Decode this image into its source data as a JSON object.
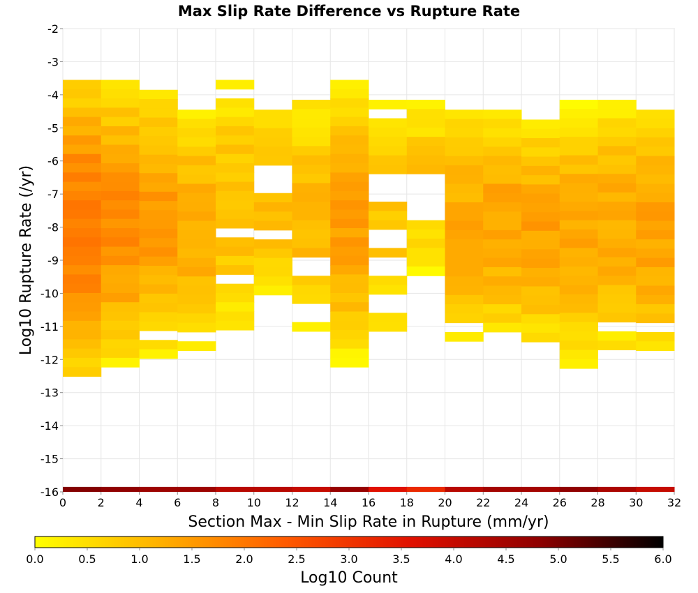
{
  "chart_data": {
    "type": "heatmap",
    "title": "Max Slip Rate Difference vs Rupture Rate",
    "xlabel": "Section Max - Min Slip Rate in Rupture (mm/yr)",
    "ylabel": "Log10 Rupture Rate (/yr)",
    "xlim": [
      0,
      32
    ],
    "ylim": [
      -16,
      -2
    ],
    "x_ticks": [
      "0",
      "2",
      "4",
      "6",
      "8",
      "10",
      "12",
      "14",
      "16",
      "18",
      "20",
      "22",
      "24",
      "26",
      "28",
      "30",
      "32"
    ],
    "y_ticks": [
      "-2",
      "-3",
      "-4",
      "-5",
      "-6",
      "-7",
      "-8",
      "-9",
      "-10",
      "-11",
      "-12",
      "-13",
      "-14",
      "-15",
      "-16"
    ],
    "x_bin_width": 2,
    "y_bin_height": 0.28,
    "grid": true,
    "colorbar": {
      "label": "Log10 Count",
      "range": [
        0,
        6
      ],
      "ticks": [
        "0.0",
        "0.5",
        "1.0",
        "1.5",
        "2.0",
        "2.5",
        "3.0",
        "3.5",
        "4.0",
        "4.5",
        "5.0",
        "5.5",
        "6.0"
      ],
      "colormap": [
        "#ffff00",
        "#ffb000",
        "#ff5a00",
        "#e01000",
        "#900000",
        "#000000"
      ]
    },
    "columns": [
      {
        "x": 1,
        "y_top": -3.55,
        "y_bottom": -12.45,
        "peak": 2.0,
        "edge": 0.5
      },
      {
        "x": 3,
        "y_top": -3.55,
        "y_bottom": -12.15,
        "peak": 1.7,
        "edge": 0.3
      },
      {
        "x": 5,
        "y_top": -3.85,
        "y_bottom": -11.85,
        "peak": 1.5,
        "edge": 0.3
      },
      {
        "x": 7,
        "y_top": -4.45,
        "y_bottom": -11.85,
        "peak": 1.3,
        "edge": 0.3
      },
      {
        "x": 9,
        "y_top": -3.55,
        "y_bottom": -11.25,
        "peak": 1.0,
        "edge": 0.2
      },
      {
        "x": 11,
        "y_top": -4.45,
        "y_bottom": -10.15,
        "peak": 1.0,
        "edge": 0.3
      },
      {
        "x": 13,
        "y_top": -4.15,
        "y_bottom": -11.25,
        "peak": 1.1,
        "edge": 0.2
      },
      {
        "x": 15,
        "y_top": -3.55,
        "y_bottom": -12.15,
        "peak": 1.4,
        "edge": 0.2
      },
      {
        "x": 17,
        "y_top": -4.15,
        "y_bottom": -11.25,
        "peak": 0.9,
        "edge": 0.2
      },
      {
        "x": 19,
        "y_top": -4.15,
        "y_bottom": -9.35,
        "peak": 0.9,
        "edge": 0.2
      },
      {
        "x": 21,
        "y_top": -4.45,
        "y_bottom": -11.55,
        "peak": 1.3,
        "edge": 0.3
      },
      {
        "x": 23,
        "y_top": -4.45,
        "y_bottom": -11.25,
        "peak": 1.4,
        "edge": 0.3
      },
      {
        "x": 25,
        "y_top": -4.75,
        "y_bottom": -11.55,
        "peak": 1.4,
        "edge": 0.3
      },
      {
        "x": 27,
        "y_top": -4.15,
        "y_bottom": -12.15,
        "peak": 1.3,
        "edge": 0.2
      },
      {
        "x": 29,
        "y_top": -4.15,
        "y_bottom": -11.85,
        "peak": 1.3,
        "edge": 0.2
      },
      {
        "x": 31,
        "y_top": -4.45,
        "y_bottom": -11.85,
        "peak": 1.4,
        "edge": 0.3
      }
    ],
    "gaps": [
      {
        "x": 5,
        "y_from": -11.0,
        "y_to": -11.3
      },
      {
        "x": 7,
        "y_from": -11.3,
        "y_to": -11.55
      },
      {
        "x": 9,
        "y_from": -3.85,
        "y_to": -4.15
      },
      {
        "x": 9,
        "y_from": -6.5,
        "y_to": -6.75
      },
      {
        "x": 9,
        "y_from": -7.9,
        "y_to": -8.2
      },
      {
        "x": 9,
        "y_from": -9.35,
        "y_to": -9.6
      },
      {
        "x": 11,
        "y_from": -6.2,
        "y_to": -6.95
      },
      {
        "x": 11,
        "y_from": -8.2,
        "y_to": -8.5
      },
      {
        "x": 13,
        "y_from": -9.05,
        "y_to": -9.6
      },
      {
        "x": 13,
        "y_from": -10.45,
        "y_to": -10.75
      },
      {
        "x": 17,
        "y_from": -4.45,
        "y_to": -4.75
      },
      {
        "x": 17,
        "y_from": -6.5,
        "y_to": -7.35
      },
      {
        "x": 17,
        "y_from": -8.2,
        "y_to": -8.5
      },
      {
        "x": 17,
        "y_from": -8.8,
        "y_to": -9.35
      },
      {
        "x": 17,
        "y_from": -10.15,
        "y_to": -10.45
      },
      {
        "x": 19,
        "y_from": -6.5,
        "y_to": -7.65
      },
      {
        "x": 21,
        "y_from": -11.0,
        "y_to": -11.25
      },
      {
        "x": 25,
        "y_from": -11.25,
        "y_to": -11.25
      },
      {
        "x": 29,
        "y_from": -11.0,
        "y_to": -11.25
      },
      {
        "x": 31,
        "y_from": -11.0,
        "y_to": -11.25
      }
    ],
    "baseline_row": {
      "y_top": -15.85,
      "y_bottom": -16.0,
      "values": [
        4.9,
        4.8,
        4.6,
        4.6,
        4.2,
        4.2,
        4.0,
        4.7,
        3.6,
        3.2,
        4.2,
        4.5,
        4.5,
        4.8,
        4.4,
        4.0
      ]
    }
  }
}
